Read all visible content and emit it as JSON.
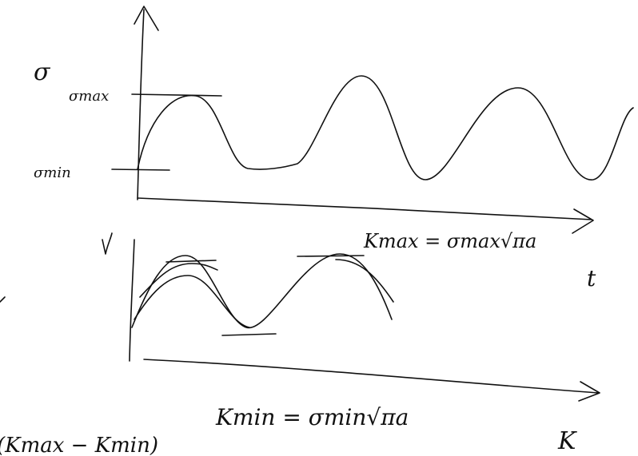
{
  "labels": {
    "sigma": "σ",
    "sigma_max": "σmax",
    "sigma_min": "σmin",
    "t_axis": "t",
    "k_max": "Kmax = σmax√πa",
    "k_min": "Kmin = σmin√πa",
    "k_axis": "K",
    "range_note": "(Kmax − Kmin)"
  }
}
